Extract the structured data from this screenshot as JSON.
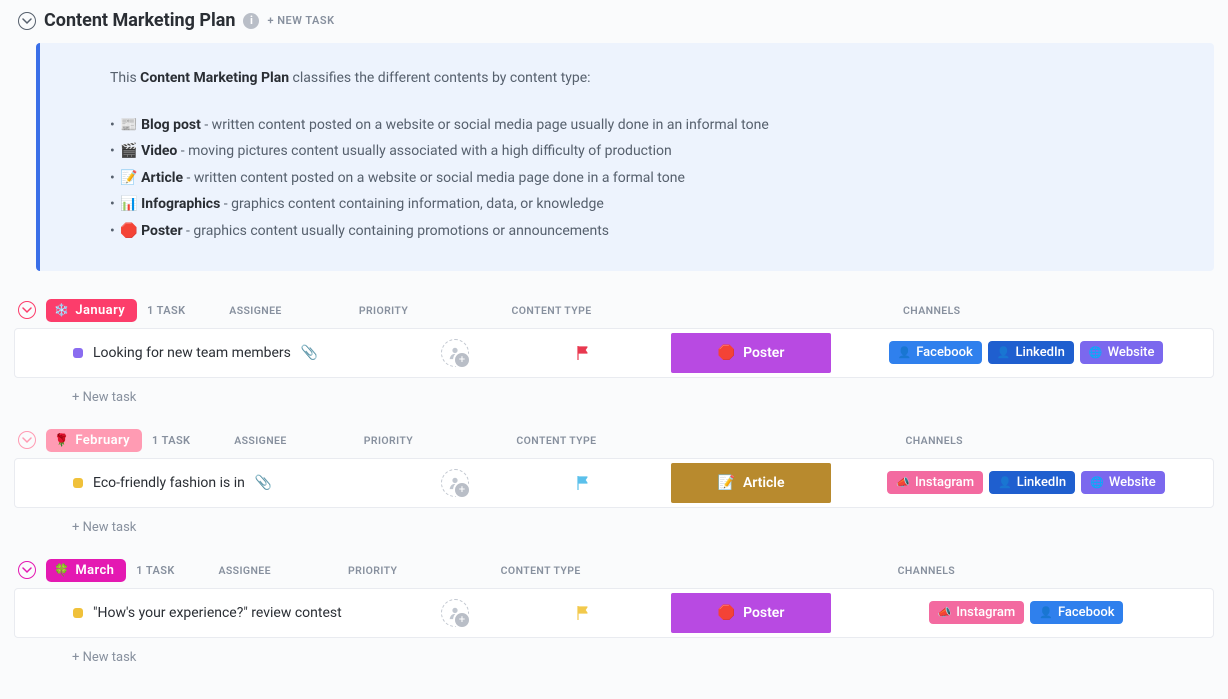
{
  "header": {
    "title": "Content Marketing Plan",
    "new_task_label": "+ NEW TASK"
  },
  "description": {
    "intro_pre": "This ",
    "intro_bold": "Content Marketing Plan",
    "intro_post": " classifies the different contents by content type:",
    "items": [
      {
        "emoji": "📰",
        "title": "Blog post",
        "desc": " - written content posted on a website or social media page usually done in an informal tone"
      },
      {
        "emoji": "🎬",
        "title": "Video",
        "desc": " - moving pictures content usually associated with a high difficulty of production"
      },
      {
        "emoji": "📝",
        "title": "Article",
        "desc": " - written content posted on a website or social media page done in a formal tone"
      },
      {
        "emoji": "📊",
        "title": "Infographics",
        "desc": " - graphics content containing information, data, or knowledge"
      },
      {
        "emoji": "🛑",
        "title": "Poster",
        "desc": " - graphics content usually containing promotions or announcements"
      }
    ]
  },
  "columns": {
    "assignee": "ASSIGNEE",
    "priority": "PRIORITY",
    "content_type": "CONTENT TYPE",
    "channels": "CHANNELS"
  },
  "channel_colors": {
    "Facebook": "#2f80ed",
    "LinkedIn": "#1f5fcf",
    "Website": "#7b68ee",
    "Instagram": "#f36aa0"
  },
  "channel_icons": {
    "Facebook": "👤",
    "LinkedIn": "👤",
    "Website": "🌐",
    "Instagram": "📣"
  },
  "groups": [
    {
      "name": "January",
      "pill_color": "#fc3d6b",
      "pill_icon": "❄️",
      "caret_color": "#fc3d6b",
      "task_count": "1 TASK",
      "tasks": [
        {
          "status_color": "#8a6cf0",
          "name": "Looking for new team members",
          "has_attachment": true,
          "priority_color": "#e8384f",
          "content_type": {
            "label": "Poster",
            "bg": "#b84ae2",
            "emoji": "🛑"
          },
          "channels": [
            "Facebook",
            "LinkedIn",
            "Website"
          ]
        }
      ],
      "new_task": "+ New task"
    },
    {
      "name": "February",
      "pill_color": "#ff9bb3",
      "pill_icon": "🌹",
      "caret_color": "#ff9bb3",
      "task_count": "1 TASK",
      "tasks": [
        {
          "status_color": "#f0c13a",
          "name": "Eco-friendly fashion is in",
          "has_attachment": true,
          "priority_color": "#5bc0eb",
          "content_type": {
            "label": "Article",
            "bg": "#b88a2e",
            "emoji": "📝"
          },
          "channels": [
            "Instagram",
            "LinkedIn",
            "Website"
          ]
        }
      ],
      "new_task": "+ New task"
    },
    {
      "name": "March",
      "pill_color": "#e419b2",
      "pill_icon": "🍀",
      "caret_color": "#e419b2",
      "task_count": "1 TASK",
      "tasks": [
        {
          "status_color": "#f0c13a",
          "name": "\"How's your experience?\" review contest",
          "has_attachment": false,
          "priority_color": "#f2c94c",
          "content_type": {
            "label": "Poster",
            "bg": "#b84ae2",
            "emoji": "🛑"
          },
          "channels": [
            "Instagram",
            "Facebook"
          ]
        }
      ],
      "new_task": "+ New task"
    }
  ]
}
